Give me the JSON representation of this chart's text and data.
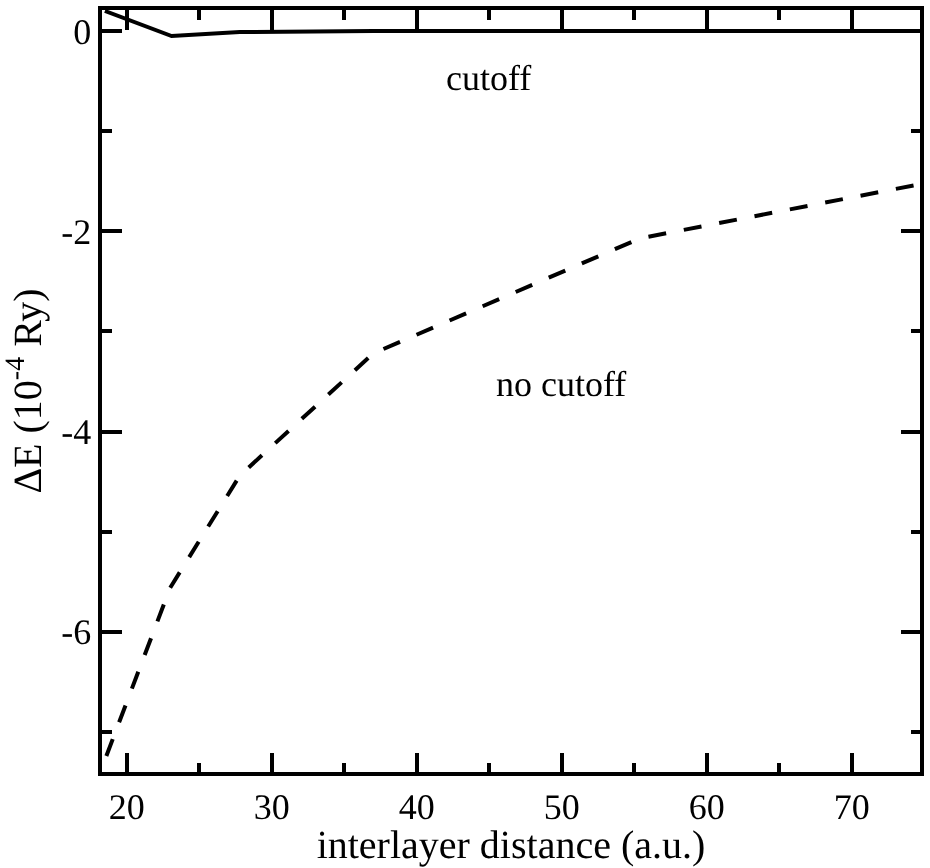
{
  "chart_data": {
    "type": "line",
    "xlabel": "interlayer distance (a.u.)",
    "ylabel": "ΔE (10$^{-4}$ Ry)",
    "xlim": [
      18.3,
      74.7
    ],
    "ylim": [
      -7.4,
      0.21
    ],
    "xticks": [
      20,
      {
        "value": 25,
        "label": null
      },
      30,
      {
        "value": 35,
        "label": null
      },
      40,
      {
        "value": 45,
        "label": null
      },
      50,
      {
        "value": 55,
        "label": null
      },
      60,
      {
        "value": 65,
        "label": null
      },
      70
    ],
    "yticks": [
      {
        "value": -7,
        "label": null
      },
      -6,
      {
        "value": -5,
        "label": null
      },
      -4,
      {
        "value": -3,
        "label": null
      },
      -2,
      {
        "value": -1,
        "label": null
      },
      0
    ],
    "grid": false,
    "series": [
      {
        "color": "#000000",
        "line_style": "solid",
        "x": [
          18.5,
          23.1,
          27.8,
          37,
          55.4,
          74.7
        ],
        "values": [
          0.2,
          -0.05,
          -0.01,
          0,
          0,
          0
        ]
      },
      {
        "color": "#000000",
        "line_style": "dashed",
        "x": [
          18.6,
          23,
          27.8,
          37,
          55.4,
          74.7
        ],
        "values": [
          -7.24,
          -5.56,
          -4.44,
          -3.22,
          -2.07,
          -1.53
        ]
      }
    ],
    "annotations": [
      "cutoff",
      "no cutoff"
    ]
  }
}
